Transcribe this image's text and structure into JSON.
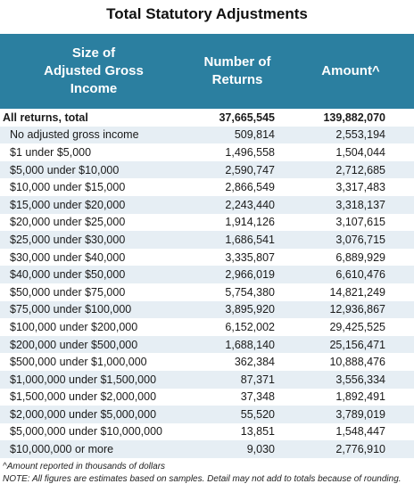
{
  "title": "Total Statutory Adjustments",
  "table": {
    "headers": {
      "col1": [
        "Size of",
        "Adjusted Gross",
        "Income"
      ],
      "col2": [
        "Number of",
        "Returns"
      ],
      "col3": "Amount^"
    },
    "total": {
      "label": "All returns, total",
      "returns": "37,665,545",
      "amount": "139,882,070"
    },
    "rows": [
      {
        "label": "No adjusted gross income",
        "returns": "509,814",
        "amount": "2,553,194"
      },
      {
        "label": "$1 under $5,000",
        "returns": "1,496,558",
        "amount": "1,504,044"
      },
      {
        "label": "$5,000 under $10,000",
        "returns": "2,590,747",
        "amount": "2,712,685"
      },
      {
        "label": "$10,000 under $15,000",
        "returns": "2,866,549",
        "amount": "3,317,483"
      },
      {
        "label": "$15,000 under $20,000",
        "returns": "2,243,440",
        "amount": "3,318,137"
      },
      {
        "label": "$20,000 under $25,000",
        "returns": "1,914,126",
        "amount": "3,107,615"
      },
      {
        "label": "$25,000 under $30,000",
        "returns": "1,686,541",
        "amount": "3,076,715"
      },
      {
        "label": "$30,000 under $40,000",
        "returns": "3,335,807",
        "amount": "6,889,929"
      },
      {
        "label": "$40,000 under $50,000",
        "returns": "2,966,019",
        "amount": "6,610,476"
      },
      {
        "label": "$50,000 under $75,000",
        "returns": "5,754,380",
        "amount": "14,821,249"
      },
      {
        "label": "$75,000 under $100,000",
        "returns": "3,895,920",
        "amount": "12,936,867"
      },
      {
        "label": "$100,000 under $200,000",
        "returns": "6,152,002",
        "amount": "29,425,525"
      },
      {
        "label": "$200,000 under $500,000",
        "returns": "1,688,140",
        "amount": "25,156,471"
      },
      {
        "label": "$500,000 under $1,000,000",
        "returns": "362,384",
        "amount": "10,888,476"
      },
      {
        "label": "$1,000,000 under $1,500,000",
        "returns": "87,371",
        "amount": "3,556,334"
      },
      {
        "label": "$1,500,000 under $2,000,000",
        "returns": "37,348",
        "amount": "1,892,491"
      },
      {
        "label": "$2,000,000 under $5,000,000",
        "returns": "55,520",
        "amount": "3,789,019"
      },
      {
        "label": "$5,000,000 under $10,000,000",
        "returns": "13,851",
        "amount": "1,548,447"
      },
      {
        "label": "$10,000,000 or more",
        "returns": "9,030",
        "amount": "2,776,910"
      }
    ]
  },
  "notes": {
    "amount_note": "^Amount reported in thousands of dollars",
    "estimate_note": "NOTE: All figures are estimates based on samples. Detail may not add to totals because of rounding."
  },
  "colors": {
    "header_bg": "#2b7fa0",
    "band_bg": "#e6eef4"
  }
}
